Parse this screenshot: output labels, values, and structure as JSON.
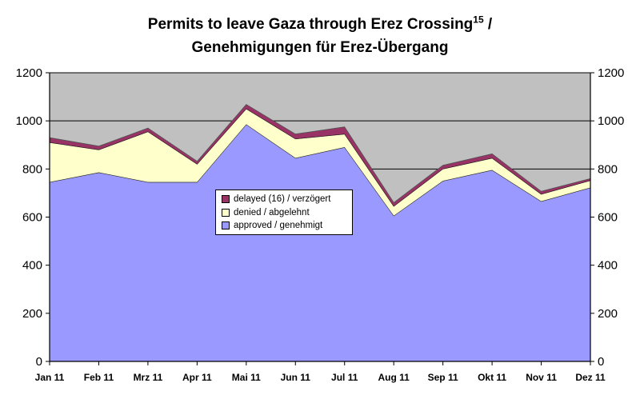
{
  "title_line1": "Permits to leave Gaza through Erez Crossing",
  "title_superscript": "15",
  "title_suffix": " /",
  "title_line2": "Genehmigungen für Erez-Übergang",
  "chart_data": {
    "type": "area",
    "stacked": true,
    "categories": [
      "Jan 11",
      "Feb 11",
      "Mrz 11",
      "Apr 11",
      "Mai 11",
      "Jun 11",
      "Jul 11",
      "Aug 11",
      "Sep 11",
      "Okt 11",
      "Nov 11",
      "Dez 11"
    ],
    "series": [
      {
        "name": "approved / genehmigt",
        "color": "#9999ff",
        "values": [
          745,
          785,
          745,
          745,
          985,
          845,
          890,
          605,
          750,
          795,
          665,
          722
        ]
      },
      {
        "name": "denied / abgelehnt",
        "color": "#ffffcc",
        "values": [
          165,
          95,
          210,
          75,
          65,
          80,
          55,
          40,
          50,
          50,
          30,
          30
        ]
      },
      {
        "name": "delayed (16) / verzögert",
        "color": "#993366",
        "values": [
          20,
          15,
          15,
          12,
          18,
          20,
          30,
          15,
          15,
          18,
          12,
          8
        ]
      }
    ],
    "ylim": [
      0,
      1200
    ],
    "yticks": [
      0,
      200,
      400,
      600,
      800,
      1000,
      1200
    ],
    "grid": true,
    "secondary_axis": true,
    "plot_background": "#c0c0c0",
    "legend_order": [
      "delayed (16) / verzögert",
      "denied / abgelehnt",
      "approved / genehmigt"
    ],
    "legend_placement": "center"
  }
}
